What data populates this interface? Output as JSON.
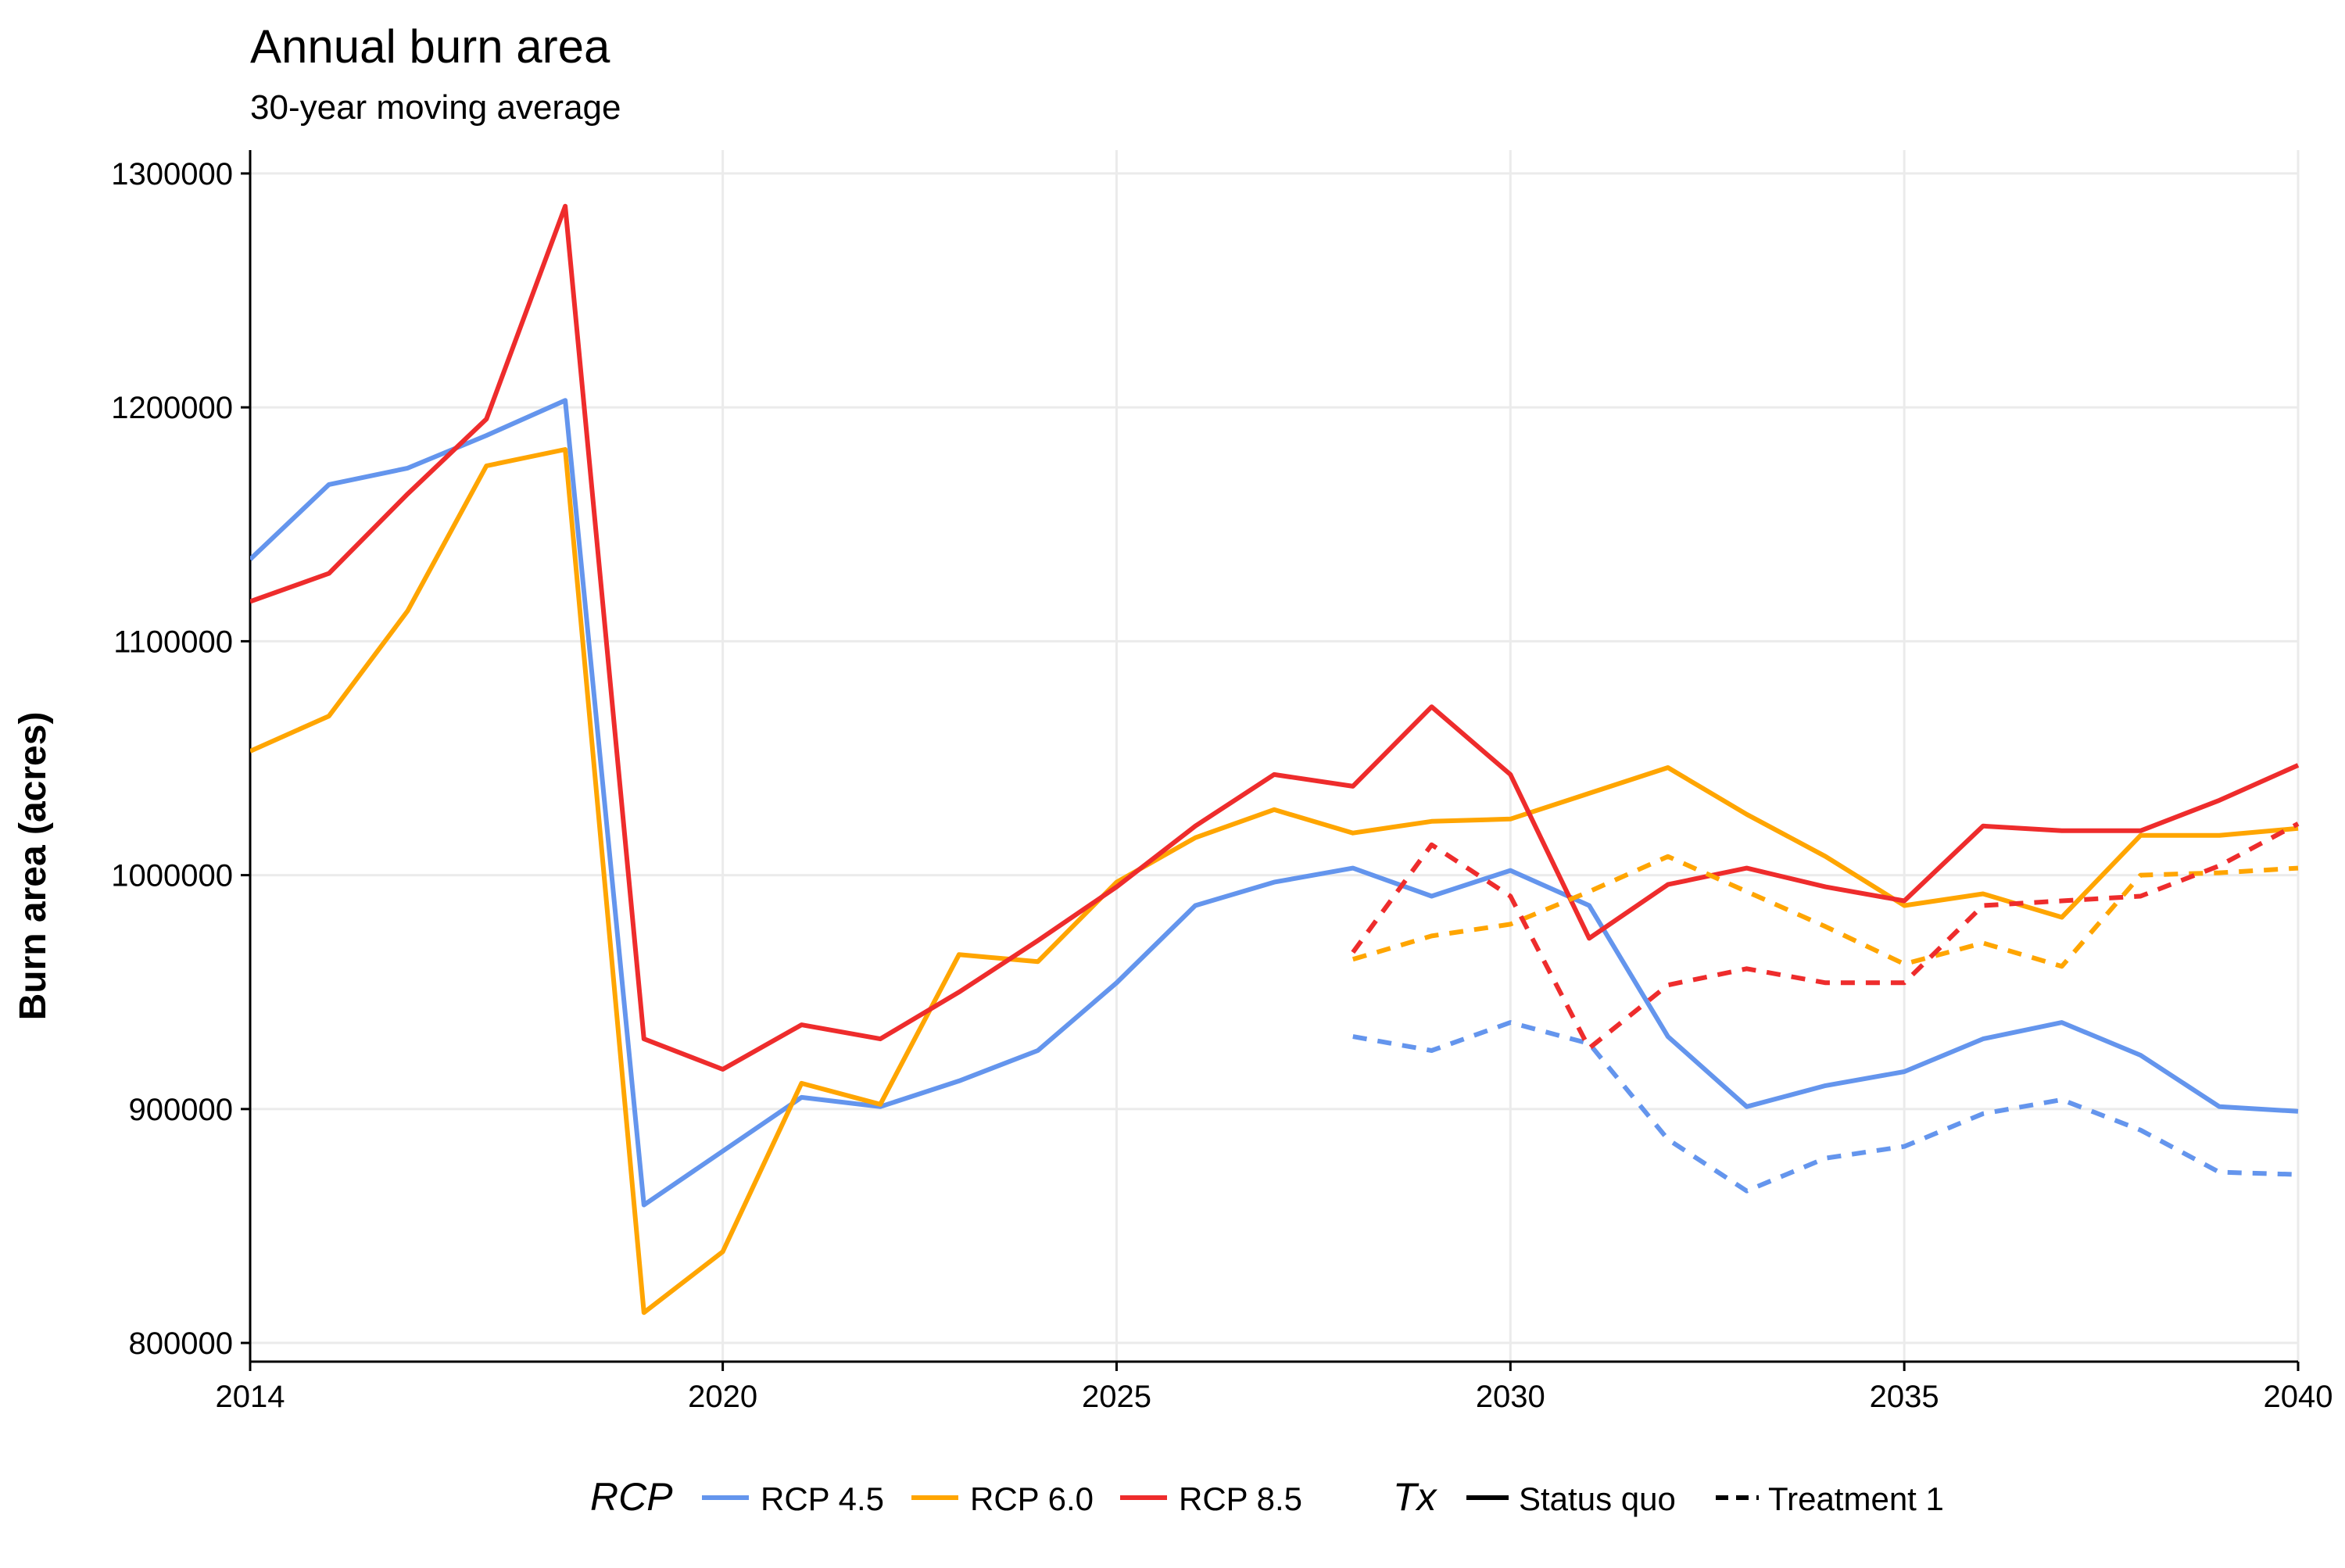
{
  "chart_data": {
    "type": "line",
    "title": "Annual burn area",
    "subtitle": "30-year moving average",
    "xlabel": "",
    "ylabel": "Burn area (acres)",
    "xlim": [
      2014,
      2040
    ],
    "ylim": [
      792000,
      1310000
    ],
    "x_ticks": [
      2014,
      2020,
      2025,
      2030,
      2035,
      2040
    ],
    "x_tick_labels": [
      "2014",
      "2020",
      "2025",
      "2030",
      "2035",
      "2040"
    ],
    "y_ticks": [
      800000,
      900000,
      1000000,
      1100000,
      1200000,
      1300000
    ],
    "y_tick_labels": [
      "800000",
      "900000",
      "1000000",
      "1100000",
      "1200000",
      "1300000"
    ],
    "grid": true,
    "legend_position": "bottom",
    "legend": {
      "rcp_title": "RCP",
      "tx_title": "Tx",
      "rcp_items": [
        {
          "label": "RCP 4.5",
          "color": "#6495ED"
        },
        {
          "label": "RCP 6.0",
          "color": "#FFA500"
        },
        {
          "label": "RCP 8.5",
          "color": "#EE2C2C"
        }
      ],
      "tx_items": [
        {
          "label": "Status quo",
          "dash": "solid"
        },
        {
          "label": "Treatment 1",
          "dash": "dashed"
        }
      ]
    },
    "series": [
      {
        "rcp": "RCP 4.5",
        "tx": "Status quo",
        "color": "#6495ED",
        "dash": "solid",
        "x": [
          2014,
          2015,
          2016,
          2017,
          2018,
          2019,
          2020,
          2021,
          2022,
          2023,
          2024,
          2025,
          2026,
          2027,
          2028,
          2029,
          2030,
          2031,
          2032,
          2033,
          2034,
          2035,
          2036,
          2037,
          2038,
          2039,
          2040
        ],
        "values": [
          1135000,
          1167000,
          1174000,
          1188000,
          1203000,
          859000,
          882000,
          905000,
          901000,
          912000,
          925000,
          954000,
          987000,
          997000,
          1003000,
          991000,
          1002000,
          987000,
          931000,
          901000,
          910000,
          916000,
          930000,
          937000,
          923000,
          901000,
          899000
        ]
      },
      {
        "rcp": "RCP 6.0",
        "tx": "Status quo",
        "color": "#FFA500",
        "dash": "solid",
        "x": [
          2014,
          2015,
          2016,
          2017,
          2018,
          2019,
          2020,
          2021,
          2022,
          2023,
          2024,
          2025,
          2026,
          2027,
          2028,
          2029,
          2030,
          2031,
          2032,
          2033,
          2034,
          2035,
          2036,
          2037,
          2038,
          2039,
          2040
        ],
        "values": [
          1053000,
          1068000,
          1113000,
          1175000,
          1182000,
          813000,
          839000,
          911000,
          902000,
          966000,
          963000,
          997000,
          1016000,
          1028000,
          1018000,
          1023000,
          1024000,
          1035000,
          1046000,
          1026000,
          1008000,
          987000,
          992000,
          982000,
          1017000,
          1017000,
          1020000
        ]
      },
      {
        "rcp": "RCP 8.5",
        "tx": "Status quo",
        "color": "#EE2C2C",
        "dash": "solid",
        "x": [
          2014,
          2015,
          2016,
          2017,
          2018,
          2019,
          2020,
          2021,
          2022,
          2023,
          2024,
          2025,
          2026,
          2027,
          2028,
          2029,
          2030,
          2031,
          2032,
          2033,
          2034,
          2035,
          2036,
          2037,
          2038,
          2039,
          2040
        ],
        "values": [
          1117000,
          1129000,
          1163000,
          1195000,
          1286000,
          930000,
          917000,
          936000,
          930000,
          950000,
          972000,
          995000,
          1021000,
          1043000,
          1038000,
          1072000,
          1043000,
          973000,
          996000,
          1003000,
          995000,
          989000,
          1021000,
          1019000,
          1019000,
          1032000,
          1047000
        ]
      },
      {
        "rcp": "RCP 4.5",
        "tx": "Treatment 1",
        "color": "#6495ED",
        "dash": "dashed",
        "x": [
          2028,
          2029,
          2030,
          2031,
          2032,
          2033,
          2034,
          2035,
          2036,
          2037,
          2038,
          2039,
          2040
        ],
        "values": [
          931000,
          925000,
          937000,
          928000,
          887000,
          865000,
          879000,
          884000,
          898000,
          904000,
          891000,
          873000,
          872000
        ]
      },
      {
        "rcp": "RCP 6.0",
        "tx": "Treatment 1",
        "color": "#FFA500",
        "dash": "dashed",
        "x": [
          2028,
          2029,
          2030,
          2031,
          2032,
          2033,
          2034,
          2035,
          2036,
          2037,
          2038,
          2039,
          2040
        ],
        "values": [
          964000,
          974000,
          979000,
          993000,
          1008000,
          993000,
          978000,
          962000,
          971000,
          961000,
          1000000,
          1001000,
          1003000
        ]
      },
      {
        "rcp": "RCP 8.5",
        "tx": "Treatment 1",
        "color": "#EE2C2C",
        "dash": "dashed",
        "x": [
          2028,
          2029,
          2030,
          2031,
          2032,
          2033,
          2034,
          2035,
          2036,
          2037,
          2038,
          2039,
          2040
        ],
        "values": [
          967000,
          1013000,
          991000,
          926000,
          953000,
          960000,
          954000,
          954000,
          987000,
          989000,
          991000,
          1004000,
          1022000
        ]
      }
    ]
  }
}
